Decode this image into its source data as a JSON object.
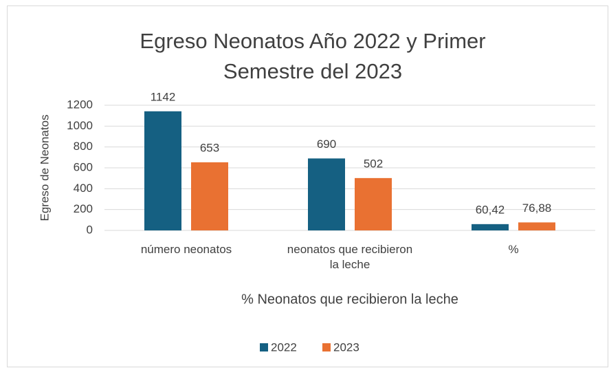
{
  "chart_data": {
    "type": "bar",
    "title": "Egreso Neonatos Año 2022 y Primer Semestre del 2023",
    "xlabel": "% Neonatos que recibieron la leche",
    "ylabel": "Egreso de Neonatos",
    "categories": [
      "número neonatos",
      "neonatos que recibieron la leche",
      "%"
    ],
    "series": [
      {
        "name": "2022",
        "color": "#156082",
        "values": [
          1142,
          690,
          60.42
        ],
        "value_labels": [
          "1142",
          "690",
          "60,42"
        ]
      },
      {
        "name": "2023",
        "color": "#e97132",
        "values": [
          653,
          502,
          76.88
        ],
        "value_labels": [
          "653",
          "502",
          "76,88"
        ]
      }
    ],
    "ylim": [
      0,
      1200
    ],
    "yticks": [
      0,
      200,
      400,
      600,
      800,
      1000,
      1200
    ],
    "grid": true,
    "legend": "bottom"
  }
}
